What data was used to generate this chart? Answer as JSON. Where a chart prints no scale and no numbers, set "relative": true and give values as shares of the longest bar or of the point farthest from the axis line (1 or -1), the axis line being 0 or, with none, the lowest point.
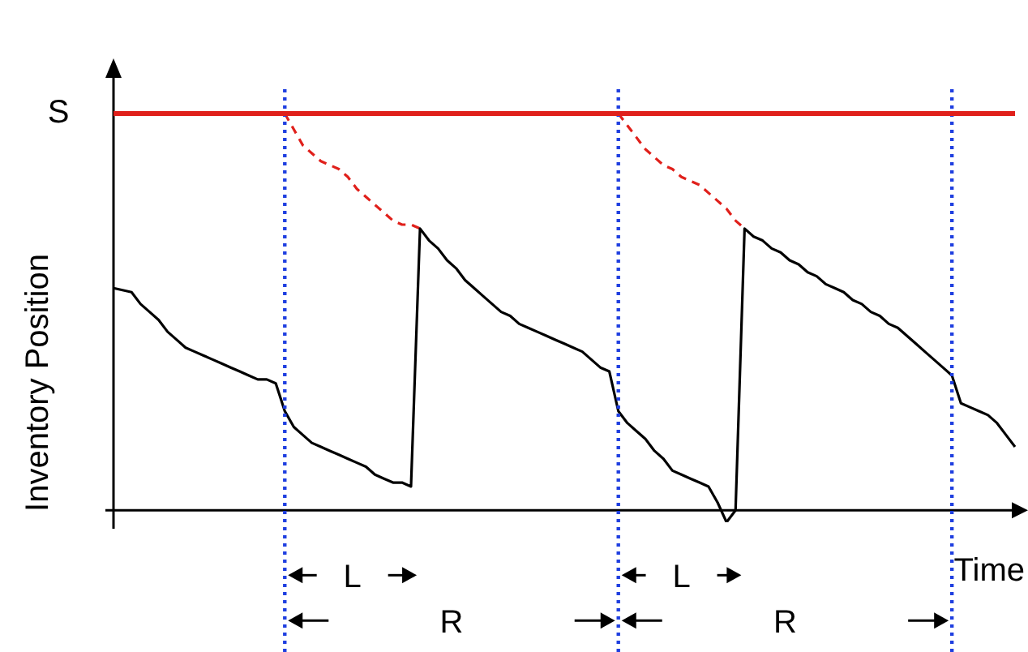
{
  "chart_data": {
    "type": "line",
    "relative": true,
    "xlabel": "Time",
    "ylabel": "Inventory Position",
    "marker": "none",
    "categories": [
      null,
      null,
      null,
      null,
      null,
      null,
      null,
      null,
      null,
      null,
      null,
      null,
      null,
      null,
      null,
      null,
      null,
      null,
      null,
      null,
      null,
      null,
      null,
      null,
      null,
      null,
      null,
      null,
      null,
      null,
      null,
      null,
      null,
      null,
      null,
      null,
      null,
      null,
      null,
      null,
      null,
      null,
      null,
      null,
      null,
      null,
      null,
      null,
      null,
      null,
      null,
      null,
      null,
      null,
      null,
      null,
      null,
      null,
      null,
      null,
      null,
      null,
      null,
      null,
      null,
      null,
      null,
      null,
      null,
      null,
      null,
      null,
      null,
      null,
      null,
      null,
      null,
      null,
      null,
      null,
      null,
      null,
      null,
      null,
      null,
      null,
      null,
      null,
      null,
      null,
      null,
      null,
      null,
      null,
      null,
      null,
      null,
      null,
      null,
      null,
      null
    ],
    "series": [
      {
        "color": "#000000",
        "values": [
          0.56,
          0.555,
          0.55,
          0.52,
          0.5,
          0.48,
          0.45,
          0.43,
          0.41,
          0.4,
          0.39,
          0.38,
          0.37,
          0.36,
          0.35,
          0.34,
          0.33,
          0.33,
          0.32,
          0.25,
          0.21,
          0.19,
          0.17,
          0.16,
          0.15,
          0.14,
          0.13,
          0.12,
          0.11,
          0.09,
          0.08,
          0.07,
          0.07,
          0.06,
          0.71,
          0.68,
          0.66,
          0.63,
          0.61,
          0.58,
          0.56,
          0.54,
          0.52,
          0.5,
          0.49,
          0.47,
          0.46,
          0.45,
          0.44,
          0.43,
          0.42,
          0.41,
          0.4,
          0.38,
          0.36,
          0.35,
          0.25,
          0.22,
          0.2,
          0.18,
          0.15,
          0.13,
          0.1,
          0.09,
          0.08,
          0.07,
          0.06,
          0.02,
          -0.03,
          0.0,
          0.71,
          0.69,
          0.68,
          0.66,
          0.65,
          0.63,
          0.62,
          0.6,
          0.59,
          0.57,
          0.56,
          0.55,
          0.53,
          0.52,
          0.5,
          0.49,
          0.47,
          0.46,
          0.44,
          0.42,
          0.4,
          0.38,
          0.36,
          0.34,
          0.27,
          0.26,
          0.25,
          0.24,
          0.22,
          0.19,
          0.16
        ]
      },
      {
        "color": "#e0201b",
        "line_style": "dashed",
        "values": [
          null,
          null,
          null,
          null,
          null,
          null,
          null,
          null,
          null,
          null,
          null,
          null,
          null,
          null,
          null,
          null,
          null,
          null,
          null,
          1.0,
          0.96,
          0.92,
          0.9,
          0.88,
          0.87,
          0.86,
          0.84,
          0.81,
          0.79,
          0.77,
          0.75,
          0.73,
          0.72,
          0.72,
          0.71,
          null,
          null,
          null,
          null,
          null,
          null,
          null,
          null,
          null,
          null,
          null,
          null,
          null,
          null,
          null,
          null,
          null,
          null,
          null,
          null,
          null,
          null,
          null,
          null,
          null,
          null,
          null,
          null,
          null,
          null,
          null,
          null,
          null,
          null,
          null,
          null,
          null,
          null,
          null,
          null,
          null,
          null,
          null,
          null,
          null,
          null,
          null,
          null,
          null,
          null,
          null,
          null,
          null,
          null,
          null,
          null,
          null,
          null,
          null,
          null,
          null,
          null,
          null,
          null,
          null,
          null
        ]
      },
      {
        "color": "#e0201b",
        "line_style": "dashed",
        "values": [
          null,
          null,
          null,
          null,
          null,
          null,
          null,
          null,
          null,
          null,
          null,
          null,
          null,
          null,
          null,
          null,
          null,
          null,
          null,
          null,
          null,
          null,
          null,
          null,
          null,
          null,
          null,
          null,
          null,
          null,
          null,
          null,
          null,
          null,
          null,
          null,
          null,
          null,
          null,
          null,
          null,
          null,
          null,
          null,
          null,
          null,
          null,
          null,
          null,
          null,
          null,
          null,
          null,
          null,
          null,
          null,
          1.0,
          0.97,
          0.94,
          0.91,
          0.89,
          0.87,
          0.86,
          0.84,
          0.83,
          0.82,
          0.8,
          0.78,
          0.76,
          0.73,
          0.71,
          null,
          null,
          null,
          null,
          null,
          null,
          null,
          null,
          null,
          null,
          null,
          null,
          null,
          null,
          null,
          null,
          null,
          null,
          null,
          null,
          null,
          null,
          null,
          null,
          null,
          null,
          null,
          null,
          null,
          null
        ]
      }
    ],
    "ref_lines": [
      {
        "axis": "y",
        "value": 1,
        "label": "S",
        "color": "#e0201b"
      }
    ],
    "grid": "x",
    "annotations": [
      "L",
      "R",
      "L",
      "R"
    ]
  }
}
